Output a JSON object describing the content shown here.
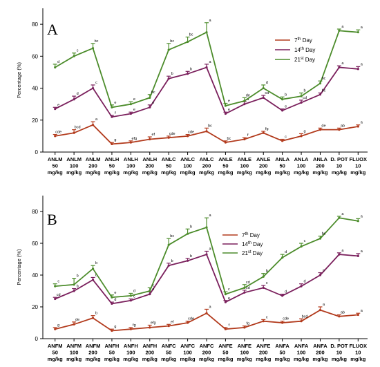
{
  "chart_data": [
    {
      "type": "line",
      "panel_label": "A",
      "ylabel": "Percentage (%)",
      "ylim": [
        0,
        90
      ],
      "yticks": [
        0,
        20,
        40,
        60,
        80
      ],
      "categories": [
        [
          "ANLM",
          "50",
          "mg/kg"
        ],
        [
          "ANLM",
          "100",
          "mg/kg"
        ],
        [
          "ANLM",
          "200",
          "mg/kg"
        ],
        [
          "ANLH",
          "50",
          "mg/kg"
        ],
        [
          "ANLH",
          "100",
          "mg/kg"
        ],
        [
          "ANLH",
          "200",
          "mg/kg"
        ],
        [
          "ANLC",
          "50",
          "mg/kg"
        ],
        [
          "ANLC",
          "100",
          "mg/kg"
        ],
        [
          "ANLC",
          "200",
          "mg/kg"
        ],
        [
          "ANLE",
          "50",
          "mg/kg"
        ],
        [
          "ANLE",
          "100",
          "mg/kg"
        ],
        [
          "ANLE",
          "200",
          "mg/kg"
        ],
        [
          "ANLA",
          "50",
          "mg/kg"
        ],
        [
          "ANLA",
          "100",
          "mg/kg"
        ],
        [
          "ANLA",
          "200",
          "mg/kg"
        ],
        [
          "D. POT",
          "10",
          "mg/kg"
        ],
        [
          "FLUOX",
          "10",
          "mg/kg"
        ]
      ],
      "legend_position": "top-right",
      "series": [
        {
          "name": "7th Day",
          "name_base": "7",
          "name_sup": "th",
          "name_rest": " Day",
          "color": "#b23a1c",
          "values": [
            10,
            12,
            17,
            5,
            6,
            8,
            9,
            10,
            13,
            6,
            8,
            12,
            7,
            10,
            14,
            14,
            16
          ],
          "errors": [
            1,
            2,
            2,
            1,
            1,
            1.5,
            1,
            1,
            2,
            1,
            1,
            1,
            1,
            1.5,
            1,
            1,
            1
          ],
          "labels": [
            "cde",
            "bcd",
            "a",
            "g",
            "efg",
            "ef",
            "cde",
            "cde",
            "bc",
            "bc",
            "f",
            "fg",
            "c",
            "g",
            "de",
            "ab",
            "a"
          ]
        },
        {
          "name": "14th Day",
          "name_base": "14",
          "name_sup": "th",
          "name_rest": " Day",
          "color": "#7a1f5c",
          "values": [
            27,
            33,
            40,
            22,
            24,
            28,
            46,
            49,
            53,
            24,
            30,
            34,
            26,
            31,
            36,
            53,
            52
          ],
          "errors": [
            1,
            2,
            2,
            1,
            1,
            1.5,
            1.5,
            1.5,
            2,
            1,
            1.5,
            1.5,
            1,
            1.5,
            1,
            1,
            1.5
          ],
          "labels": [
            "e",
            "d",
            "c",
            "f",
            "e",
            "e",
            "b",
            "b",
            "a",
            "e",
            "d",
            "cd",
            "e",
            "cd",
            "bc",
            "a",
            "a"
          ]
        },
        {
          "name": "21st Day",
          "name_base": "21",
          "name_sup": "st",
          "name_rest": " Day",
          "color": "#4c8c2b",
          "values": [
            53,
            60,
            65,
            28,
            30,
            34,
            64,
            69,
            75,
            29,
            32,
            40,
            33,
            35,
            43,
            76,
            75
          ],
          "errors": [
            2,
            2,
            3,
            1.5,
            1.5,
            2,
            4,
            3,
            6,
            1.5,
            2,
            2,
            1.5,
            2,
            1.5,
            1,
            1.5
          ],
          "labels": [
            "d",
            "c",
            "bc",
            "e",
            "e",
            "bc",
            "bc",
            "bc",
            "a",
            "e",
            "de",
            "d",
            "b",
            "b",
            "bc",
            "a",
            "a"
          ]
        }
      ]
    },
    {
      "type": "line",
      "panel_label": "B",
      "ylabel": "Percentage (%)",
      "ylim": [
        0,
        90
      ],
      "yticks": [
        0,
        20,
        40,
        60,
        80
      ],
      "categories": [
        [
          "ANFM",
          "50",
          "mg/kg"
        ],
        [
          "ANFM",
          "100",
          "mg/kg"
        ],
        [
          "ANFM",
          "200",
          "mg/kg"
        ],
        [
          "ANFH",
          "50",
          "mg/kg"
        ],
        [
          "ANFH",
          "100",
          "mg/kg"
        ],
        [
          "ANFH",
          "200",
          "mg/kg"
        ],
        [
          "ANFC",
          "50",
          "mg/kg"
        ],
        [
          "ANFC",
          "100",
          "mg/kg"
        ],
        [
          "ANFC",
          "200",
          "mg/kg"
        ],
        [
          "ANFE",
          "50",
          "mg/kg"
        ],
        [
          "ANFE",
          "100",
          "mg/kg"
        ],
        [
          "ANFE",
          "200",
          "mg/kg"
        ],
        [
          "ANFA",
          "50",
          "mg/kg"
        ],
        [
          "ANFA",
          "100",
          "mg/kg"
        ],
        [
          "ANFA",
          "200",
          "mg/kg"
        ],
        [
          "D. POT",
          "10",
          "mg/kg"
        ],
        [
          "FLUOX",
          "10",
          "mg/kg"
        ]
      ],
      "legend_position": "top-center",
      "series": [
        {
          "name": "7th Day",
          "name_base": "7",
          "name_sup": "th",
          "name_rest": " Day",
          "color": "#b23a1c",
          "values": [
            6,
            9,
            13,
            5,
            6,
            7,
            8,
            10,
            16,
            6,
            7,
            11,
            10,
            11,
            18,
            14,
            15
          ],
          "errors": [
            1,
            1.5,
            1.5,
            1,
            1,
            1.5,
            1,
            1,
            2.5,
            1,
            1,
            1,
            1,
            1.5,
            2,
            1,
            1
          ],
          "labels": [
            "g",
            "de",
            "b",
            "g",
            "fg",
            "efg",
            "ef",
            "cde",
            "a",
            "f",
            "fg",
            "c",
            "cde",
            "bcd",
            "a",
            "ab",
            "a"
          ]
        },
        {
          "name": "14th Day",
          "name_base": "14",
          "name_sup": "th",
          "name_rest": " Day",
          "color": "#7a1f5c",
          "values": [
            25,
            30,
            37,
            22,
            24,
            28,
            46,
            49,
            53,
            23,
            29,
            32,
            27,
            33,
            40,
            53,
            52
          ],
          "errors": [
            1,
            1.5,
            1.5,
            1,
            1,
            1.5,
            1.5,
            1.5,
            2,
            1,
            1.5,
            1.5,
            1,
            1.5,
            1.5,
            1,
            1.5
          ],
          "labels": [
            "cd",
            "b",
            "b",
            "d",
            "c",
            "e",
            "b",
            "b",
            "a",
            "e",
            "cd",
            "c",
            "d",
            "d",
            "c",
            "a",
            "a"
          ]
        },
        {
          "name": "21st Day",
          "name_base": "21",
          "name_sup": "st",
          "name_rest": " Day",
          "color": "#4c8c2b",
          "values": [
            33,
            34,
            44,
            26,
            27,
            30,
            59,
            66,
            70,
            28,
            32,
            39,
            51,
            58,
            63,
            76,
            74
          ],
          "errors": [
            1.5,
            4,
            2,
            1.5,
            1.5,
            2,
            4,
            3,
            6,
            1.5,
            2,
            2,
            2,
            2,
            1.5,
            1,
            1.5
          ],
          "labels": [
            "c",
            "b",
            "b",
            "e",
            "d",
            "c",
            "bc",
            "b",
            "a",
            "c",
            "cd",
            "b",
            "d",
            "c",
            "bc",
            "a",
            "a"
          ]
        }
      ]
    }
  ]
}
